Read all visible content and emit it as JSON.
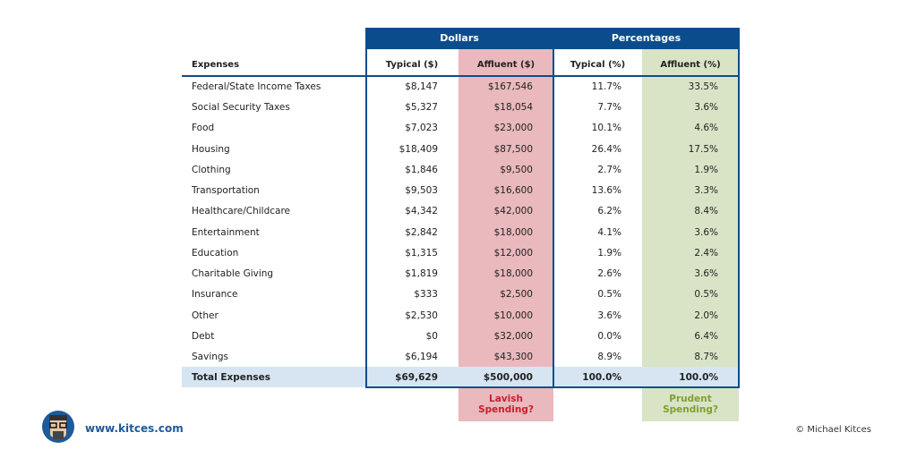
{
  "group_headers": [
    "Dollars",
    "Percentages"
  ],
  "columns": [
    "Expenses",
    "Typical ($)",
    "Affluent ($)",
    "Typical (%)",
    "Affluent (%)"
  ],
  "rows": [
    [
      "Federal/State Income Taxes",
      "$8,147",
      "$167,546",
      "11.7%",
      "33.5%"
    ],
    [
      "Social Security Taxes",
      "$5,327",
      "$18,054",
      "7.7%",
      "3.6%"
    ],
    [
      "Food",
      "$7,023",
      "$23,000",
      "10.1%",
      "4.6%"
    ],
    [
      "Housing",
      "$18,409",
      "$87,500",
      "26.4%",
      "17.5%"
    ],
    [
      "Clothing",
      "$1,846",
      "$9,500",
      "2.7%",
      "1.9%"
    ],
    [
      "Transportation",
      "$9,503",
      "$16,600",
      "13.6%",
      "3.3%"
    ],
    [
      "Healthcare/Childcare",
      "$4,342",
      "$42,000",
      "6.2%",
      "8.4%"
    ],
    [
      "Entertainment",
      "$2,842",
      "$18,000",
      "4.1%",
      "3.6%"
    ],
    [
      "Education",
      "$1,315",
      "$12,000",
      "1.9%",
      "2.4%"
    ],
    [
      "Charitable Giving",
      "$1,819",
      "$18,000",
      "2.6%",
      "3.6%"
    ],
    [
      "Insurance",
      "$333",
      "$2,500",
      "0.5%",
      "0.5%"
    ],
    [
      "Other",
      "$2,530",
      "$10,000",
      "3.6%",
      "2.0%"
    ],
    [
      "Debt",
      "$0",
      "$32,000",
      "0.0%",
      "6.4%"
    ],
    [
      "Savings",
      "$6,194",
      "$43,300",
      "8.9%",
      "8.7%"
    ]
  ],
  "total": [
    "Total Expenses",
    "$69,629",
    "$500,000",
    "100.0%",
    "100.0%"
  ],
  "notes": [
    "Lavish Spending?",
    "Prudent Spending?"
  ],
  "website": "www.kitces.com",
  "copyright": "© Michael Kitces"
}
